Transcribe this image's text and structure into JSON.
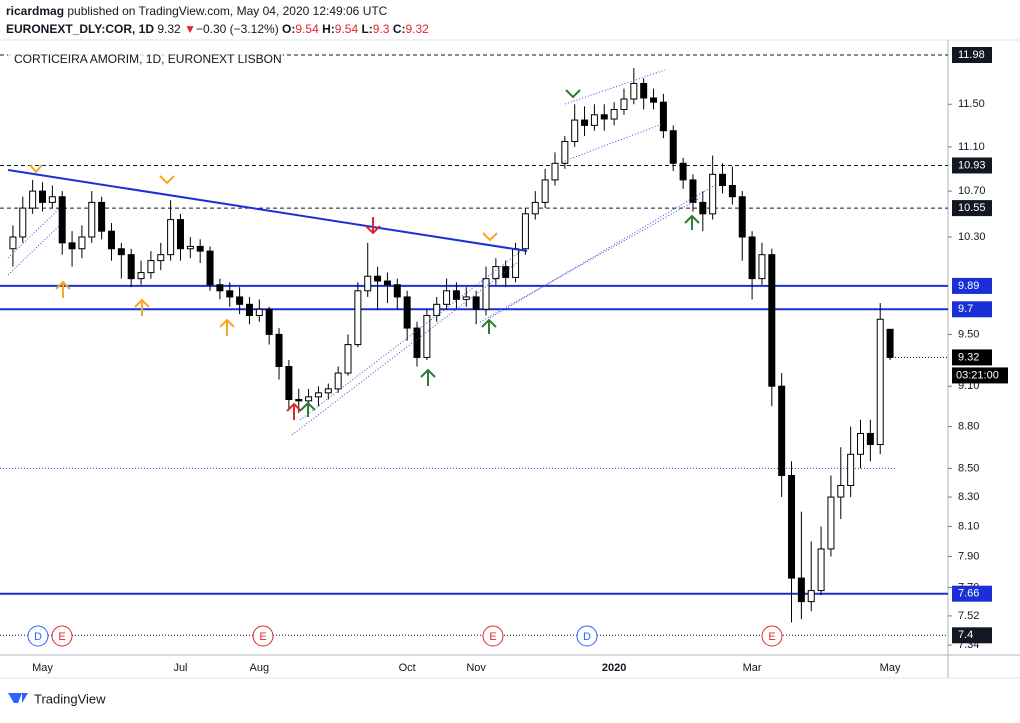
{
  "header": {
    "user": "ricardmag",
    "published": "published on TradingView.com, May 04, 2020 12:49:06 UTC",
    "symbol": "EURONEXT_DLY:COR, 1D",
    "change": "−0.30 (−3.12%)",
    "o": "O:",
    "h": "H:",
    "l": "L:",
    "c": "C:"
  },
  "chart_data": {
    "type": "candlestick",
    "title": "CORTICEIRA AMORIM, 1D, EURONEXT LISBON",
    "log_scale": true,
    "up_color": "#ffffff",
    "down_color": "#000000",
    "edge_color": "#000000",
    "categories": [
      null,
      null,
      null,
      "May",
      null,
      null,
      null,
      null,
      null,
      null,
      null,
      null,
      null,
      null,
      null,
      null,
      null,
      "Jul",
      null,
      null,
      null,
      null,
      null,
      null,
      null,
      "Aug",
      null,
      null,
      null,
      null,
      null,
      null,
      null,
      null,
      null,
      null,
      null,
      null,
      null,
      null,
      "Oct",
      null,
      null,
      null,
      null,
      null,
      null,
      "Nov",
      null,
      null,
      null,
      null,
      null,
      null,
      null,
      null,
      null,
      null,
      null,
      null,
      null,
      "2020",
      null,
      null,
      null,
      null,
      null,
      null,
      null,
      null,
      null,
      null,
      null,
      null,
      null,
      "Mar",
      null,
      null,
      null,
      null,
      null,
      null,
      null,
      null,
      null,
      null,
      null,
      null,
      null,
      "May"
    ],
    "ohlc": [
      [
        10.2,
        10.4,
        10.05,
        10.3
      ],
      [
        10.3,
        10.65,
        10.25,
        10.55
      ],
      [
        10.55,
        10.8,
        10.5,
        10.7
      ],
      [
        10.7,
        10.78,
        10.52,
        10.6
      ],
      [
        10.6,
        10.75,
        10.55,
        10.65
      ],
      [
        10.65,
        10.7,
        10.15,
        10.25
      ],
      [
        10.25,
        10.35,
        10.05,
        10.2
      ],
      [
        10.2,
        10.4,
        10.12,
        10.3
      ],
      [
        10.3,
        10.7,
        10.25,
        10.6
      ],
      [
        10.6,
        10.65,
        10.28,
        10.35
      ],
      [
        10.35,
        10.42,
        10.1,
        10.2
      ],
      [
        10.2,
        10.25,
        9.95,
        10.15
      ],
      [
        10.15,
        10.2,
        9.88,
        9.95
      ],
      [
        9.95,
        10.1,
        9.9,
        10.0
      ],
      [
        10.0,
        10.18,
        9.95,
        10.1
      ],
      [
        10.1,
        10.25,
        10.02,
        10.15
      ],
      [
        10.15,
        10.62,
        10.1,
        10.45
      ],
      [
        10.45,
        10.5,
        10.1,
        10.2
      ],
      [
        10.2,
        10.3,
        10.12,
        10.22
      ],
      [
        10.22,
        10.28,
        10.08,
        10.18
      ],
      [
        10.18,
        10.22,
        9.85,
        9.9
      ],
      [
        9.9,
        9.95,
        9.78,
        9.85
      ],
      [
        9.85,
        9.92,
        9.72,
        9.8
      ],
      [
        9.8,
        9.88,
        9.66,
        9.74
      ],
      [
        9.74,
        9.8,
        9.58,
        9.65
      ],
      [
        9.65,
        9.78,
        9.6,
        9.7
      ],
      [
        9.7,
        9.72,
        9.42,
        9.5
      ],
      [
        9.5,
        9.55,
        9.15,
        9.25
      ],
      [
        9.25,
        9.3,
        8.92,
        9.0
      ],
      [
        9.0,
        9.08,
        8.9,
        8.99
      ],
      [
        8.99,
        9.08,
        8.92,
        9.02
      ],
      [
        9.02,
        9.1,
        8.95,
        9.05
      ],
      [
        9.05,
        9.12,
        9.0,
        9.08
      ],
      [
        9.08,
        9.25,
        9.05,
        9.2
      ],
      [
        9.2,
        9.5,
        9.18,
        9.42
      ],
      [
        9.42,
        9.92,
        9.4,
        9.85
      ],
      [
        9.85,
        10.25,
        9.8,
        9.97
      ],
      [
        9.97,
        10.05,
        9.7,
        9.93
      ],
      [
        9.93,
        10.0,
        9.75,
        9.9
      ],
      [
        9.9,
        9.95,
        9.7,
        9.8
      ],
      [
        9.8,
        9.85,
        9.45,
        9.55
      ],
      [
        9.55,
        9.6,
        9.25,
        9.32
      ],
      [
        9.32,
        9.7,
        9.3,
        9.65
      ],
      [
        9.65,
        9.8,
        9.6,
        9.74
      ],
      [
        9.74,
        9.95,
        9.7,
        9.85
      ],
      [
        9.85,
        9.92,
        9.7,
        9.78
      ],
      [
        9.78,
        9.88,
        9.72,
        9.8
      ],
      [
        9.8,
        9.85,
        9.58,
        9.7
      ],
      [
        9.7,
        10.05,
        9.65,
        9.95
      ],
      [
        9.95,
        10.12,
        9.9,
        10.05
      ],
      [
        10.05,
        10.1,
        9.88,
        9.96
      ],
      [
        9.96,
        10.25,
        9.92,
        10.2
      ],
      [
        10.2,
        10.55,
        10.15,
        10.5
      ],
      [
        10.5,
        10.7,
        10.45,
        10.6
      ],
      [
        10.6,
        10.9,
        10.55,
        10.8
      ],
      [
        10.8,
        11.05,
        10.75,
        10.95
      ],
      [
        10.95,
        11.2,
        10.9,
        11.15
      ],
      [
        11.15,
        11.5,
        11.1,
        11.35
      ],
      [
        11.35,
        11.48,
        11.2,
        11.3
      ],
      [
        11.3,
        11.5,
        11.25,
        11.4
      ],
      [
        11.4,
        11.5,
        11.25,
        11.36
      ],
      [
        11.36,
        11.52,
        11.3,
        11.45
      ],
      [
        11.45,
        11.65,
        11.4,
        11.55
      ],
      [
        11.55,
        11.85,
        11.5,
        11.7
      ],
      [
        11.7,
        11.75,
        11.45,
        11.56
      ],
      [
        11.56,
        11.65,
        11.45,
        11.52
      ],
      [
        11.52,
        11.6,
        11.18,
        11.25
      ],
      [
        11.25,
        11.3,
        10.88,
        10.95
      ],
      [
        10.95,
        11.0,
        10.72,
        10.8
      ],
      [
        10.8,
        10.85,
        10.52,
        10.6
      ],
      [
        10.6,
        10.7,
        10.35,
        10.5
      ],
      [
        10.5,
        11.02,
        10.45,
        10.85
      ],
      [
        10.85,
        10.95,
        10.68,
        10.75
      ],
      [
        10.75,
        10.92,
        10.58,
        10.65
      ],
      [
        10.65,
        10.7,
        10.1,
        10.3
      ],
      [
        10.3,
        10.35,
        9.78,
        9.95
      ],
      [
        9.95,
        10.25,
        9.9,
        10.15
      ],
      [
        10.15,
        10.2,
        8.95,
        9.1
      ],
      [
        9.1,
        9.2,
        8.3,
        8.45
      ],
      [
        8.45,
        8.55,
        7.48,
        7.76
      ],
      [
        7.76,
        8.2,
        7.5,
        7.61
      ],
      [
        7.61,
        8.0,
        7.55,
        7.68
      ],
      [
        7.68,
        8.1,
        7.65,
        7.95
      ],
      [
        7.95,
        8.45,
        7.9,
        8.3
      ],
      [
        8.3,
        8.65,
        8.15,
        8.38
      ],
      [
        8.38,
        8.8,
        8.3,
        8.6
      ],
      [
        8.6,
        8.85,
        8.5,
        8.75
      ],
      [
        8.75,
        8.85,
        8.55,
        8.67
      ],
      [
        8.67,
        9.75,
        8.6,
        9.62
      ],
      [
        9.54,
        9.54,
        9.3,
        9.32
      ]
    ],
    "ylim": [
      7.28,
      12.13
    ],
    "yticks": [
      {
        "value": 11.5,
        "label": "11.50"
      },
      {
        "value": 11.1,
        "label": "11.10"
      },
      {
        "value": 10.7,
        "label": "10.70"
      },
      {
        "value": 10.3,
        "label": "10.30"
      },
      {
        "value": 9.5,
        "label": "9.50"
      },
      {
        "value": 9.1,
        "label": "9.10"
      },
      {
        "value": 8.8,
        "label": "8.80"
      },
      {
        "value": 8.5,
        "label": "8.50"
      },
      {
        "value": 8.3,
        "label": "8.30"
      },
      {
        "value": 8.1,
        "label": "8.10"
      },
      {
        "value": 7.9,
        "label": "7.90"
      },
      {
        "value": 7.7,
        "label": "7.70"
      },
      7.52,
      7.34
    ],
    "levels": [
      {
        "value": 11.98,
        "style": "dashed",
        "color": "#131722",
        "axis_label": true
      },
      {
        "value": 10.93,
        "style": "dashed",
        "color": "#131722",
        "axis_label": true
      },
      {
        "value": 10.55,
        "style": "dashed",
        "color": "#131722",
        "axis_label": true
      },
      {
        "value": 9.89,
        "style": "solid",
        "color": "#1a2fd6",
        "axis_label": true
      },
      {
        "value": 9.7,
        "style": "solid",
        "color": "#1a2fd6",
        "axis_label": true
      },
      {
        "value": 8.5,
        "style": "dotted",
        "color": "#3b4be0",
        "axis_label": false
      },
      {
        "value": 7.66,
        "style": "solid",
        "color": "#1a2fd6",
        "axis_label": true
      },
      {
        "value": 7.4,
        "style": "dotted",
        "color": "#131722",
        "axis_label": true
      }
    ],
    "countdown": "03:21:00",
    "events": [
      "D",
      "E",
      "E",
      "E",
      "D",
      "E"
    ]
  },
  "footer": {
    "brand": "TradingView"
  }
}
